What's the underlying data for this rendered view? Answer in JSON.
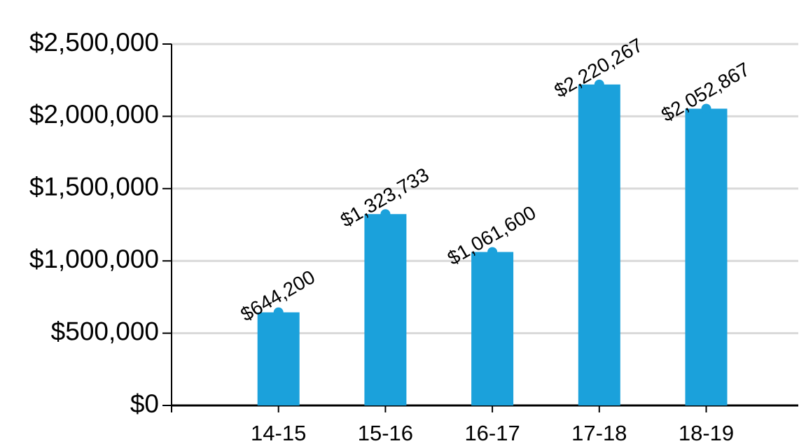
{
  "chart_data": {
    "type": "bar",
    "categories": [
      "14-15",
      "15-16",
      "16-17",
      "17-18",
      "18-19"
    ],
    "values": [
      644200,
      1323733,
      1061600,
      2220267,
      2052867
    ],
    "value_labels": [
      "$644,200",
      "$1,323,733",
      "$1,061,600",
      "$2,220,267",
      "$2,052,867"
    ],
    "color": "#1ba1db",
    "ylim": [
      0,
      2500000
    ],
    "yticks": [
      {
        "value": 0,
        "label": "$0"
      },
      {
        "value": 500000,
        "label": "$500,000"
      },
      {
        "value": 1000000,
        "label": "$1,000,000"
      },
      {
        "value": 1500000,
        "label": "$1,500,000"
      },
      {
        "value": 2000000,
        "label": "$2,000,000"
      },
      {
        "value": 2500000,
        "label": "$2,500,000"
      }
    ],
    "grid": true
  }
}
